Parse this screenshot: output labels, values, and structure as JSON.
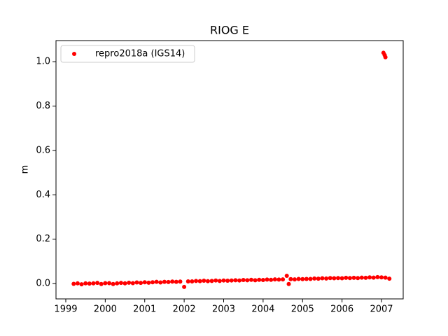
{
  "chart_data": {
    "type": "scatter",
    "title": "RIOG E",
    "y_label": "m",
    "xlim": [
      1998.752,
      2007.55
    ],
    "xticks": [
      1999,
      2000,
      2001,
      2002,
      2003,
      2004,
      2005,
      2006,
      2007
    ],
    "ylim": [
      -0.069,
      1.095
    ],
    "yticks": [
      {
        "value": 0.0,
        "label": "0.0"
      },
      0.2,
      0.4,
      0.6,
      0.8,
      {
        "value": 1.0,
        "label": "1.0"
      }
    ],
    "legend_position": "upper left",
    "series": [
      {
        "name": "repro2018a (IGS14)",
        "color": "#ff0000",
        "x": [
          1999.2,
          1999.3,
          1999.4,
          1999.5,
          1999.6,
          1999.7,
          1999.8,
          1999.9,
          2000.0,
          2000.1,
          2000.2,
          2000.3,
          2000.4,
          2000.5,
          2000.6,
          2000.7,
          2000.8,
          2000.9,
          2001.0,
          2001.1,
          2001.2,
          2001.3,
          2001.4,
          2001.5,
          2001.6,
          2001.7,
          2001.8,
          2001.9,
          2002.0,
          2002.1,
          2002.2,
          2002.3,
          2002.4,
          2002.5,
          2002.6,
          2002.7,
          2002.8,
          2002.9,
          2003.0,
          2003.1,
          2003.2,
          2003.3,
          2003.4,
          2003.5,
          2003.6,
          2003.7,
          2003.8,
          2003.9,
          2004.0,
          2004.1,
          2004.2,
          2004.3,
          2004.4,
          2004.5,
          2004.6,
          2004.7,
          2004.8,
          2004.9,
          2005.0,
          2005.1,
          2005.2,
          2005.3,
          2005.4,
          2005.5,
          2005.6,
          2005.7,
          2005.8,
          2005.9,
          2006.0,
          2006.1,
          2006.2,
          2006.3,
          2006.4,
          2006.5,
          2006.6,
          2006.7,
          2006.8,
          2006.9,
          2007.0,
          2007.1,
          2004.65,
          2007.05,
          2007.08,
          2007.1,
          2007.2
        ],
        "values": [
          -0.001,
          0.001,
          -0.003,
          0.001,
          0.0,
          0.001,
          0.003,
          -0.002,
          0.002,
          0.002,
          -0.002,
          0.001,
          0.003,
          0.001,
          0.004,
          0.002,
          0.005,
          0.003,
          0.006,
          0.004,
          0.006,
          0.008,
          0.005,
          0.008,
          0.007,
          0.009,
          0.008,
          0.009,
          -0.015,
          0.01,
          0.01,
          0.012,
          0.011,
          0.013,
          0.011,
          0.012,
          0.014,
          0.012,
          0.014,
          0.013,
          0.014,
          0.015,
          0.014,
          0.016,
          0.015,
          0.017,
          0.015,
          0.017,
          0.016,
          0.018,
          0.017,
          0.019,
          0.018,
          0.019,
          0.035,
          0.02,
          0.019,
          0.021,
          0.02,
          0.021,
          0.021,
          0.023,
          0.022,
          0.024,
          0.023,
          0.025,
          0.024,
          0.025,
          0.024,
          0.026,
          0.025,
          0.026,
          0.025,
          0.027,
          0.026,
          0.028,
          0.027,
          0.029,
          0.028,
          0.027,
          -0.002,
          1.04,
          1.03,
          1.02,
          0.022
        ]
      }
    ]
  }
}
